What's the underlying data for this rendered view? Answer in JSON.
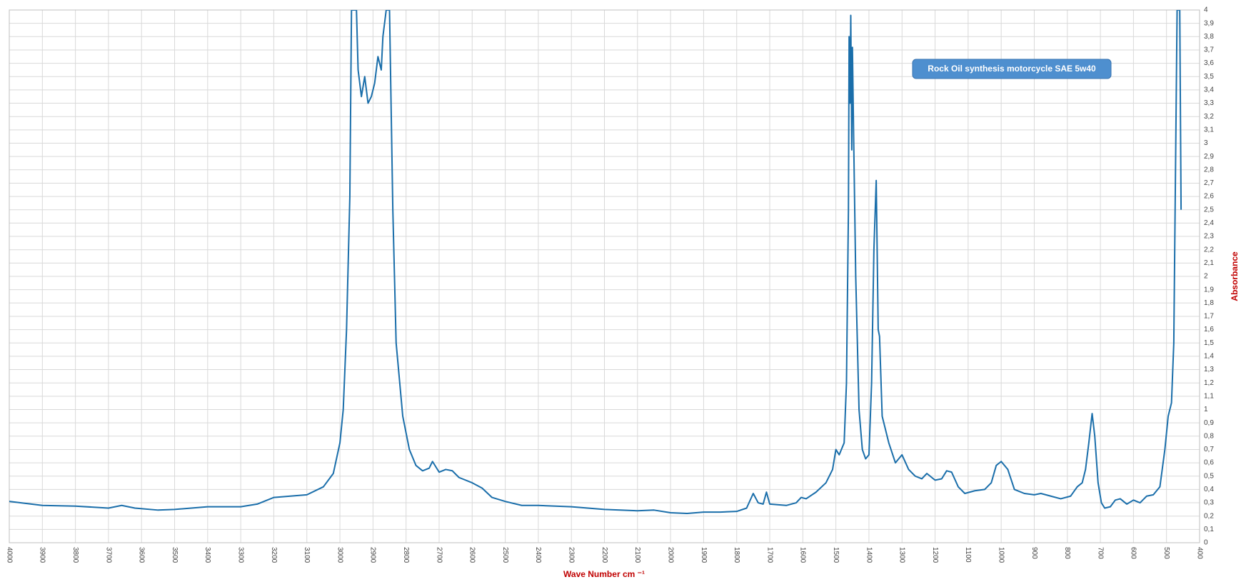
{
  "chart_data": {
    "type": "line",
    "x_label": "Wave Number cm ⁻¹",
    "y_label": "Absorbance",
    "annotation": "Rock Oil synthesis motorcycle SAE 5w40",
    "xlim": [
      4000,
      400
    ],
    "xticks": [
      4000,
      3900,
      3800,
      3700,
      3600,
      3500,
      3400,
      3300,
      3200,
      3100,
      3000,
      2900,
      2800,
      2700,
      2600,
      2500,
      2400,
      2300,
      2200,
      2100,
      2000,
      1900,
      1800,
      1700,
      1600,
      1500,
      1400,
      1300,
      1200,
      1100,
      1000,
      900,
      800,
      700,
      600,
      500,
      400
    ],
    "ylim": [
      0,
      4
    ],
    "yticks": [
      0,
      {
        "value": 0.1,
        "label": "0,1"
      },
      {
        "value": 0.2,
        "label": "0,2"
      },
      {
        "value": 0.3,
        "label": "0,3"
      },
      {
        "value": 0.4,
        "label": "0,4"
      },
      {
        "value": 0.5,
        "label": "0,5"
      },
      {
        "value": 0.6,
        "label": "0,6"
      },
      {
        "value": 0.7,
        "label": "0,7"
      },
      {
        "value": 0.8,
        "label": "0,8"
      },
      {
        "value": 0.9,
        "label": "0,9"
      },
      1,
      {
        "value": 1.1,
        "label": "1,1"
      },
      {
        "value": 1.2,
        "label": "1,2"
      },
      {
        "value": 1.3,
        "label": "1,3"
      },
      {
        "value": 1.4,
        "label": "1,4"
      },
      {
        "value": 1.5,
        "label": "1,5"
      },
      {
        "value": 1.6,
        "label": "1,6"
      },
      {
        "value": 1.7,
        "label": "1,7"
      },
      {
        "value": 1.8,
        "label": "1,8"
      },
      {
        "value": 1.9,
        "label": "1,9"
      },
      2,
      {
        "value": 2.1,
        "label": "2,1"
      },
      {
        "value": 2.2,
        "label": "2,2"
      },
      {
        "value": 2.3,
        "label": "2,3"
      },
      {
        "value": 2.4,
        "label": "2,4"
      },
      {
        "value": 2.5,
        "label": "2,5"
      },
      {
        "value": 2.6,
        "label": "2,6"
      },
      {
        "value": 2.7,
        "label": "2,7"
      },
      {
        "value": 2.8,
        "label": "2,8"
      },
      {
        "value": 2.9,
        "label": "2,9"
      },
      3,
      {
        "value": 3.1,
        "label": "3,1"
      },
      {
        "value": 3.2,
        "label": "3,2"
      },
      {
        "value": 3.3,
        "label": "3,3"
      },
      {
        "value": 3.4,
        "label": "3,4"
      },
      {
        "value": 3.5,
        "label": "3,5"
      },
      {
        "value": 3.6,
        "label": "3,6"
      },
      {
        "value": 3.7,
        "label": "3,7"
      },
      {
        "value": 3.8,
        "label": "3,8"
      },
      {
        "value": 3.9,
        "label": "3,9"
      },
      4
    ],
    "grid": true,
    "series": [
      {
        "color": "#1a6eaa",
        "x": [
          4000,
          3900,
          3800,
          3700,
          3660,
          3620,
          3550,
          3500,
          3400,
          3300,
          3250,
          3200,
          3150,
          3100,
          3050,
          3020,
          3000,
          2990,
          2980,
          2970,
          2965,
          2950,
          2945,
          2935,
          2925,
          2915,
          2905,
          2895,
          2885,
          2875,
          2870,
          2860,
          2850,
          2840,
          2830,
          2810,
          2790,
          2770,
          2750,
          2730,
          2720,
          2700,
          2680,
          2660,
          2640,
          2600,
          2570,
          2540,
          2500,
          2450,
          2400,
          2300,
          2200,
          2100,
          2050,
          2000,
          1950,
          1900,
          1850,
          1800,
          1770,
          1750,
          1735,
          1720,
          1710,
          1700,
          1650,
          1620,
          1605,
          1590,
          1560,
          1530,
          1510,
          1500,
          1490,
          1475,
          1468,
          1462,
          1460,
          1457,
          1455,
          1452,
          1450,
          1446,
          1440,
          1430,
          1420,
          1410,
          1400,
          1392,
          1385,
          1378,
          1372,
          1368,
          1360,
          1340,
          1320,
          1300,
          1280,
          1260,
          1240,
          1225,
          1200,
          1180,
          1165,
          1150,
          1130,
          1110,
          1080,
          1050,
          1030,
          1015,
          1000,
          980,
          960,
          930,
          900,
          880,
          850,
          820,
          790,
          770,
          755,
          745,
          735,
          725,
          717,
          707,
          697,
          687,
          670,
          655,
          640,
          620,
          600,
          580,
          560,
          540,
          520,
          505,
          495,
          485,
          478,
          472,
          468,
          460,
          456
        ],
        "values": [
          0.31,
          0.28,
          0.275,
          0.26,
          0.28,
          0.26,
          0.245,
          0.25,
          0.27,
          0.27,
          0.29,
          0.34,
          0.35,
          0.36,
          0.42,
          0.52,
          0.75,
          1.0,
          1.6,
          2.6,
          4.0,
          4.0,
          3.55,
          3.35,
          3.5,
          3.3,
          3.35,
          3.45,
          3.65,
          3.55,
          3.8,
          4.0,
          4.0,
          2.5,
          1.5,
          0.95,
          0.7,
          0.58,
          0.54,
          0.56,
          0.61,
          0.53,
          0.55,
          0.54,
          0.49,
          0.45,
          0.41,
          0.34,
          0.31,
          0.28,
          0.28,
          0.27,
          0.25,
          0.24,
          0.245,
          0.225,
          0.22,
          0.23,
          0.23,
          0.235,
          0.26,
          0.37,
          0.3,
          0.29,
          0.38,
          0.29,
          0.28,
          0.3,
          0.34,
          0.33,
          0.38,
          0.45,
          0.55,
          0.7,
          0.66,
          0.75,
          1.2,
          2.5,
          3.8,
          3.3,
          3.96,
          2.95,
          3.72,
          3.0,
          2.0,
          1.0,
          0.7,
          0.63,
          0.66,
          1.2,
          2.2,
          2.72,
          1.6,
          1.55,
          0.95,
          0.75,
          0.6,
          0.66,
          0.55,
          0.5,
          0.48,
          0.52,
          0.47,
          0.48,
          0.54,
          0.53,
          0.42,
          0.37,
          0.39,
          0.4,
          0.45,
          0.58,
          0.61,
          0.55,
          0.4,
          0.37,
          0.36,
          0.37,
          0.35,
          0.33,
          0.35,
          0.42,
          0.45,
          0.55,
          0.75,
          0.97,
          0.8,
          0.45,
          0.3,
          0.26,
          0.27,
          0.32,
          0.33,
          0.29,
          0.32,
          0.3,
          0.35,
          0.36,
          0.42,
          0.7,
          0.95,
          1.05,
          1.5,
          3.0,
          4.0,
          4.0,
          2.5
        ]
      }
    ]
  }
}
